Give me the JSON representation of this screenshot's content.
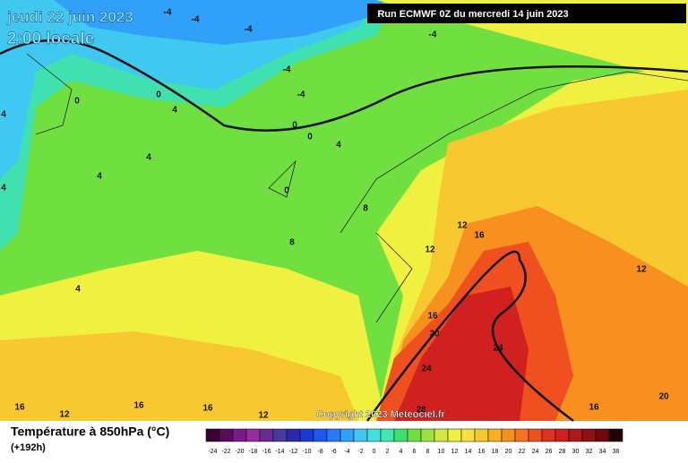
{
  "header": {
    "date": "jeudi 22 juin 2023",
    "time": "2:00 locale",
    "run": "Run ECMWF 0Z du mercredi 14 juin 2023",
    "copyright": "Copyright 2023 Meteociel.fr"
  },
  "map": {
    "labels": [
      "-4",
      "-4",
      "-4",
      "-4",
      "-4",
      "-4",
      "0",
      "0",
      "4",
      "0",
      "0",
      "4",
      "4",
      "4",
      "0",
      "8",
      "12",
      "16",
      "12",
      "8",
      "4",
      "12",
      "16",
      "20",
      "24",
      "24",
      "20",
      "16",
      "16",
      "12",
      "16",
      "16",
      "12",
      "28",
      "4",
      "4"
    ]
  },
  "legend": {
    "title": "Température à 850hPa (°C)",
    "subtitle": "(+192h)",
    "ticks": [
      -24,
      -22,
      -20,
      -18,
      -16,
      -14,
      -12,
      -10,
      -8,
      -6,
      -4,
      -2,
      0,
      2,
      4,
      6,
      8,
      10,
      12,
      14,
      16,
      18,
      20,
      22,
      24,
      26,
      28,
      30,
      32,
      34,
      36
    ],
    "colors": [
      "#3a0033",
      "#5a0a5a",
      "#7a1a8a",
      "#9a2aa0",
      "#6a2a90",
      "#4a3aa0",
      "#2a2ab0",
      "#1a3ad0",
      "#1a5af0",
      "#2a7af8",
      "#30a0f8",
      "#40c8f0",
      "#40e0e0",
      "#40e8b0",
      "#40e070",
      "#70e040",
      "#a0e040",
      "#d0e840",
      "#f0f040",
      "#f8e040",
      "#f8c830",
      "#f8b020",
      "#f89020",
      "#f87020",
      "#f05020",
      "#e03020",
      "#d02020",
      "#b01818",
      "#901010",
      "#700808",
      "#200000"
    ]
  }
}
